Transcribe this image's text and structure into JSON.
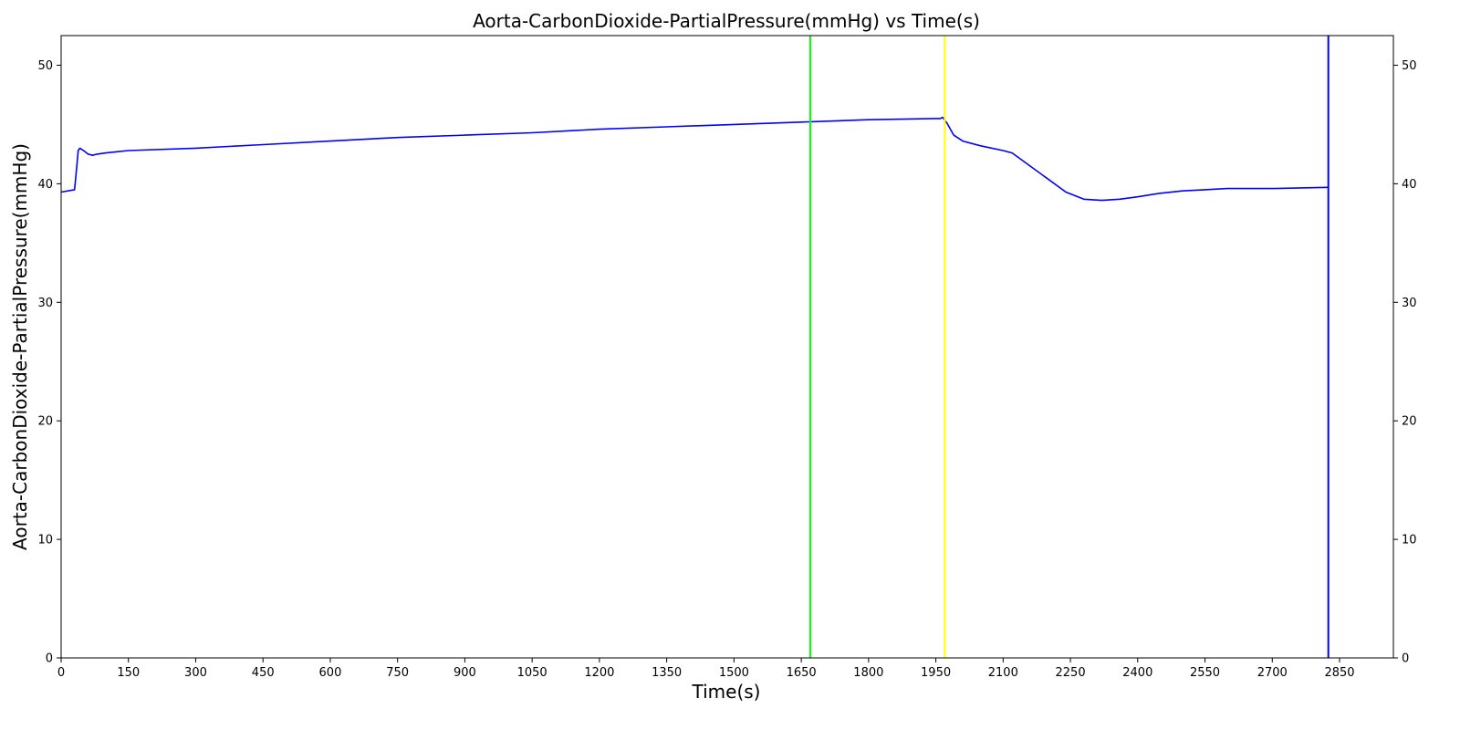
{
  "chart_data": {
    "type": "line",
    "title": "Aorta-CarbonDioxide-PartialPressure(mmHg) vs Time(s)",
    "xlabel": "Time(s)",
    "ylabel": "Aorta-CarbonDioxide-PartialPressure(mmHg)",
    "xlim": [
      0,
      2970
    ],
    "ylim": [
      0,
      52.5
    ],
    "x_ticks": [
      0,
      150,
      300,
      450,
      600,
      750,
      900,
      1050,
      1200,
      1350,
      1500,
      1650,
      1800,
      1950,
      2100,
      2250,
      2400,
      2550,
      2700,
      2850
    ],
    "y_ticks": [
      0,
      10,
      20,
      30,
      40,
      50
    ],
    "right_axis_ticks": [
      0,
      10,
      20,
      30,
      40,
      50
    ],
    "grid": false,
    "series": [
      {
        "color": "#0000ff",
        "x": [
          0,
          30,
          35,
          38,
          42,
          50,
          60,
          70,
          80,
          100,
          150,
          300,
          450,
          600,
          750,
          900,
          1050,
          1200,
          1350,
          1500,
          1650,
          1800,
          1950,
          1960,
          1965,
          1975,
          1990,
          2010,
          2050,
          2100,
          2120,
          2160,
          2200,
          2240,
          2280,
          2320,
          2360,
          2400,
          2450,
          2500,
          2550,
          2600,
          2700,
          2825
        ],
        "values": [
          39.3,
          39.5,
          41.5,
          42.8,
          43.0,
          42.8,
          42.5,
          42.4,
          42.5,
          42.6,
          42.8,
          43.0,
          43.3,
          43.6,
          43.9,
          44.1,
          44.3,
          44.6,
          44.8,
          45.0,
          45.2,
          45.4,
          45.5,
          45.5,
          45.6,
          45.1,
          44.1,
          43.6,
          43.2,
          42.8,
          42.6,
          41.5,
          40.4,
          39.3,
          38.7,
          38.6,
          38.7,
          38.9,
          39.2,
          39.4,
          39.5,
          39.6,
          39.6,
          39.7
        ]
      }
    ],
    "vertical_lines": [
      {
        "x": 1670,
        "color": "#00ff00"
      },
      {
        "x": 1970,
        "color": "#ffff00"
      },
      {
        "x": 2825,
        "color": "#0000ff"
      }
    ]
  }
}
